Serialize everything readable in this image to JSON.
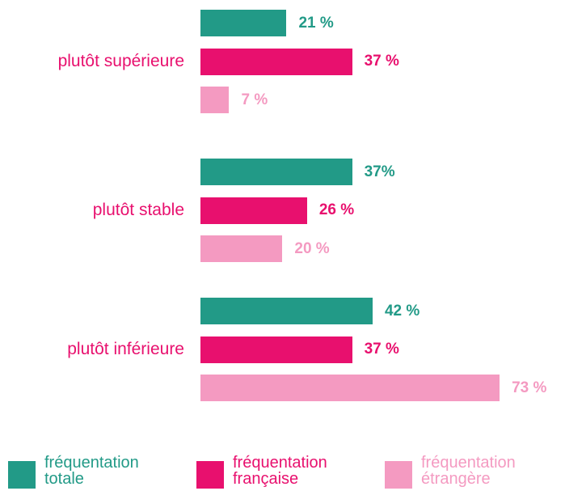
{
  "chart_data": {
    "type": "bar",
    "orientation": "horizontal",
    "categories": [
      "plutôt supérieure",
      "plutôt stable",
      "plutôt inférieure"
    ],
    "series": [
      {
        "name": "fréquentation totale",
        "color": "#229a87",
        "values": [
          21,
          37,
          42
        ],
        "value_labels": [
          "21 %",
          "37%",
          "42 %"
        ]
      },
      {
        "name": "fréquentation française",
        "color": "#e8106e",
        "values": [
          37,
          26,
          37
        ],
        "value_labels": [
          "37 %",
          "26 %",
          "37 %"
        ]
      },
      {
        "name": "fréquentation étrangère",
        "color": "#f49ac1",
        "values": [
          7,
          20,
          73
        ],
        "value_labels": [
          "7 %",
          "20 %",
          "73 %"
        ]
      }
    ]
  }
}
